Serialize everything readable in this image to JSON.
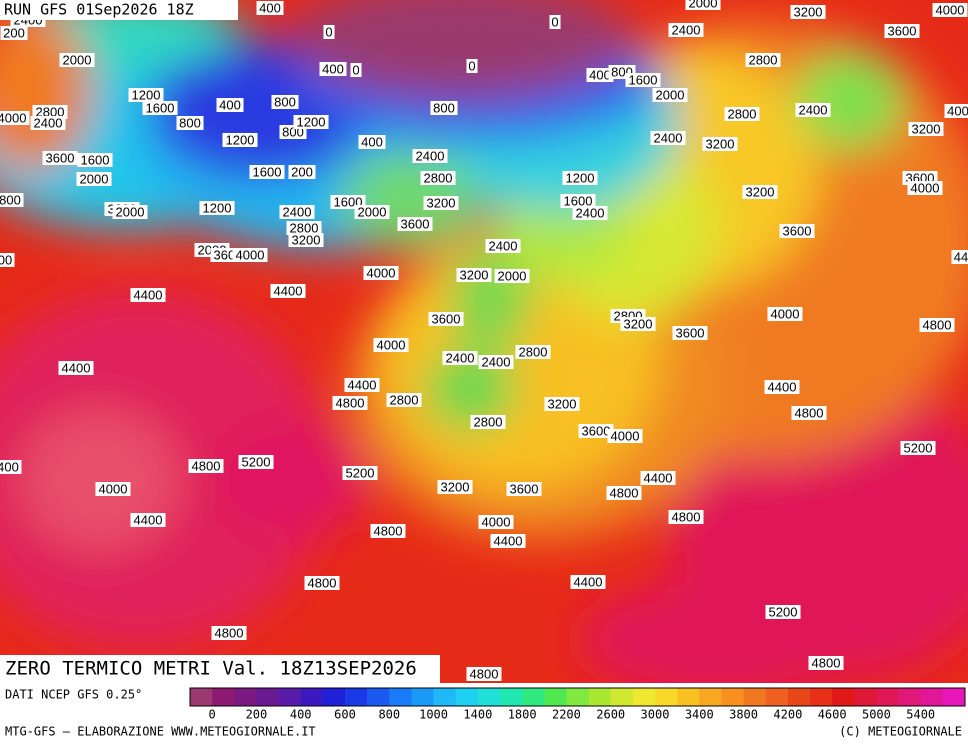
{
  "header": {
    "run": "RUN GFS 01Sep2026 18Z",
    "title": "ZERO TERMICO METRI Val. 18Z13SEP2026"
  },
  "footer": {
    "source": "DATI NCEP GFS 0.25°",
    "credit": "MTG-GFS — ELABORAZIONE WWW.METEOGIORNALE.IT",
    "copyright": "(C) METEOGIORNALE"
  },
  "legend": {
    "colors": [
      "#9a3a6e",
      "#8c1a70",
      "#7a1a80",
      "#6a1a90",
      "#5a1aa8",
      "#3a1ac0",
      "#2020d8",
      "#1a3ae8",
      "#1a5af0",
      "#1a7af8",
      "#1a9af8",
      "#20b8f8",
      "#20d0f0",
      "#20e0d8",
      "#20e8b0",
      "#30e880",
      "#50e850",
      "#80e840",
      "#a8e830",
      "#d0e830",
      "#f0e830",
      "#f8d828",
      "#f8c020",
      "#f8a820",
      "#f89020",
      "#f07820",
      "#f06020",
      "#e84818",
      "#e83018",
      "#e01818",
      "#e01838",
      "#e01858",
      "#e01878",
      "#e01898",
      "#e818b8"
    ],
    "ticks": [
      0,
      200,
      400,
      600,
      800,
      1000,
      1400,
      1800,
      2200,
      2600,
      3000,
      3400,
      3800,
      4200,
      4600,
      5000,
      5400
    ]
  },
  "contour_labels": [
    "2400",
    "200",
    "2000",
    "1200",
    "1600",
    "2800",
    "2400",
    "800",
    "400",
    "800",
    "1200",
    "800",
    "1200",
    "400",
    "400",
    "0",
    "0",
    "400",
    "0",
    "0",
    "800",
    "400",
    "800",
    "1600",
    "2000",
    "2400",
    "2000",
    "3200",
    "4000",
    "3600",
    "2800",
    "2400",
    "2800",
    "2400",
    "3200",
    "3200",
    "3200",
    "3600",
    "4000",
    "3600",
    "3600",
    "1600",
    "2000",
    "1600",
    "200",
    "2400",
    "2800",
    "3200",
    "1600",
    "2000",
    "1200",
    "3200",
    "2000",
    "2400",
    "2800",
    "3200",
    "3600",
    "2000",
    "3600",
    "4000",
    "1200",
    "1600",
    "2400",
    "2400",
    "3200",
    "2000",
    "4000",
    "4400",
    "4400",
    "3600",
    "2800",
    "3200",
    "3600",
    "4000",
    "4800",
    "4000",
    "2400",
    "2400",
    "2800",
    "4400",
    "4400",
    "4800",
    "2800",
    "3200",
    "4400",
    "4800",
    "2800",
    "3600",
    "4000",
    "5200",
    "4800",
    "5200",
    "5200",
    "4000",
    "3200",
    "3600",
    "4400",
    "4800",
    "4400",
    "4800",
    "4000",
    "4800",
    "4400",
    "4400",
    "4800",
    "5200",
    "4800",
    "4800",
    "4800",
    "4000",
    "800",
    "00",
    "400",
    "44",
    "400"
  ]
}
